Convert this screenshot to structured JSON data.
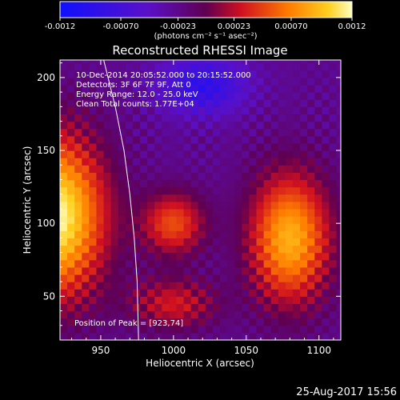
{
  "chart_data": {
    "type": "heatmap",
    "title": "Reconstructed RHESSI Image",
    "xlabel": "Heliocentric X (arcsec)",
    "ylabel": "Heliocentric Y (arcsec)",
    "xlim": [
      922,
      1115
    ],
    "ylim": [
      20,
      212
    ],
    "x_ticks": [
      950,
      1000,
      1050,
      1100
    ],
    "y_ticks": [
      50,
      100,
      150,
      200
    ],
    "colorbar": {
      "range": [
        -0.0012,
        0.0012
      ],
      "tick_labels": [
        "-0.0012",
        "-0.00070",
        "-0.00023",
        "0.00023",
        "0.00070",
        "0.0012"
      ],
      "units": "(photons cm⁻² s⁻¹ asec⁻²)"
    },
    "annotations": [
      "10-Dec-2014 20:05:52.000 to 20:15:52.000",
      "Detectors: 3F 6F 7F 9F, Att 0",
      "Energy Range: 12.0 - 25.0 keV",
      "Clean     Total counts: 1.77E+04"
    ],
    "peak_label": "Position of Peak = [923,74]",
    "peak": [
      923,
      74
    ],
    "sources": [
      {
        "x": 918,
        "y": 105,
        "peak": 0.0012,
        "sx": 35,
        "sy": 55
      },
      {
        "x": 1080,
        "y": 90,
        "peak": 0.00088,
        "sx": 28,
        "sy": 45
      },
      {
        "x": 1000,
        "y": 100,
        "peak": 0.0005,
        "sx": 22,
        "sy": 22
      },
      {
        "x": 1000,
        "y": 45,
        "peak": 0.0003,
        "sx": 30,
        "sy": 18
      }
    ],
    "min_region": {
      "x": 1020,
      "y": 195,
      "value": -0.0009
    },
    "limb_curve": [
      [
        952,
        212
      ],
      [
        960,
        180
      ],
      [
        966,
        150
      ],
      [
        970,
        120
      ],
      [
        973,
        90
      ],
      [
        975,
        60
      ],
      [
        976,
        20
      ]
    ]
  },
  "footer": {
    "date": "25-Aug-2017 15:56"
  }
}
